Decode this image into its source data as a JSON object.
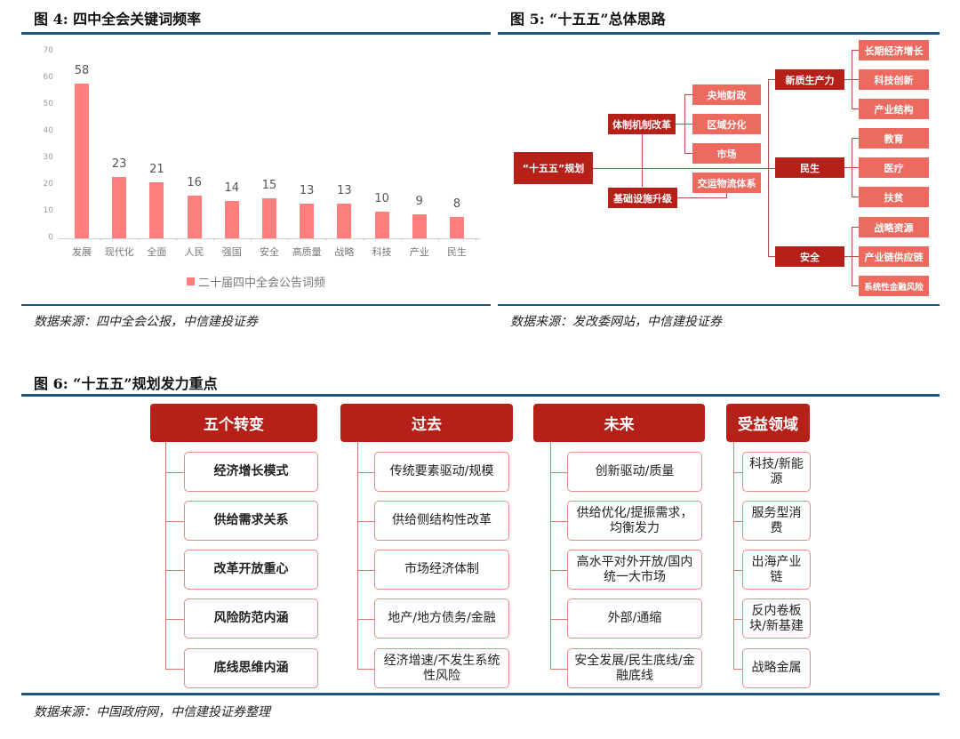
{
  "figure4": {
    "title": "图 4: 四中全会关键词频率",
    "source": "数据来源：四中全会公报，中信建投证券",
    "legend": "二十届四中全会公告词频"
  },
  "chart_data": {
    "type": "bar",
    "title": "四中全会关键词频率",
    "categories": [
      "发展",
      "现代化",
      "全面",
      "人民",
      "强国",
      "安全",
      "高质量",
      "战略",
      "科技",
      "产业",
      "民生"
    ],
    "series": [
      {
        "name": "二十届四中全会公告词频",
        "values": [
          58,
          23,
          21,
          16,
          14,
          15,
          13,
          13,
          10,
          9,
          8
        ],
        "color": "#ff7f7f"
      }
    ],
    "xlabel": "",
    "ylabel": "",
    "ylim": [
      0,
      70
    ],
    "yticks": [
      "0",
      "10",
      "20",
      "30",
      "40",
      "50",
      "60",
      "70"
    ],
    "grid": false,
    "legend_position": "bottom",
    "data_labels": true
  },
  "figure5": {
    "title": "图 5: “十五五”总体思路",
    "source": "数据来源：发改委网站，中信建投证券",
    "root": "“十五五”规划",
    "branch_reform": "体制机制改革",
    "reform_children": [
      "央地财政",
      "区域分化",
      "市场"
    ],
    "branch_infra": "基础设施升级",
    "infra_children": [
      "交运物流体系"
    ],
    "branch_productivity": "新质生产力",
    "productivity_children": [
      "长期经济增长",
      "科技创新",
      "产业结构"
    ],
    "branch_livelihood": "民生",
    "livelihood_children": [
      "教育",
      "医疗",
      "扶贫"
    ],
    "branch_security": "安全",
    "security_children": [
      "战略资源",
      "产业链供应链",
      "系统性金融风险"
    ]
  },
  "figure6": {
    "title": "图 6: “十五五”规划发力重点",
    "source": "数据来源：中国政府网，中信建投证券整理",
    "columns": [
      {
        "header": "五个转变",
        "items": [
          "经济增长模式",
          "供给需求关系",
          "改革开放重心",
          "风险防范内涵",
          "底线思维内涵"
        ]
      },
      {
        "header": "过去",
        "items": [
          "传统要素驱动/规模",
          "供给侧结构性改革",
          "市场经济体制",
          "地产/地方债务/金融",
          "经济增速/不发生系统性风险"
        ]
      },
      {
        "header": "未来",
        "items": [
          "创新驱动/质量",
          "供给优化/提振需求，均衡发力",
          "高水平对外开放/国内统一大市场",
          "外部/通缩",
          "安全发展/民生底线/金融底线"
        ]
      },
      {
        "header": "受益领域",
        "items": [
          "科技/新能源",
          "服务型消费",
          "出海产业链",
          "反内卷板块/新基建",
          "战略金属"
        ]
      }
    ]
  },
  "colors": {
    "rule": "#1f5582",
    "bar": "#ff7f7f",
    "dark_node": "#b52019",
    "light_node": "#ec6a5e",
    "cell_border": "#e58c86"
  }
}
